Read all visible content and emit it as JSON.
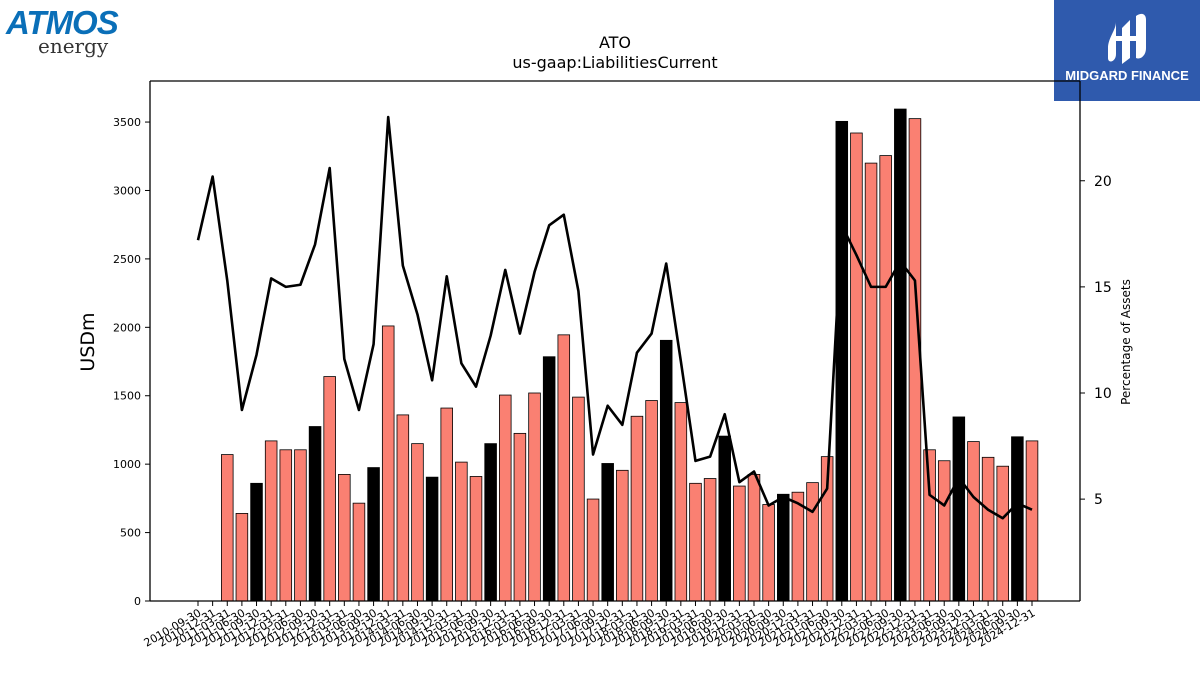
{
  "logos": {
    "left_line1": "ATMOS",
    "left_line2": "energy",
    "right_text": "MIDGARD FINANCE"
  },
  "colors": {
    "bar_regular": "#fa8072",
    "bar_fiscal_year_end": "#000000",
    "line": "#000000",
    "logo_right_bg": "#2f5aad",
    "logo_left": "#0a6fb8"
  },
  "chart_data": {
    "type": "bar",
    "title": "ATO",
    "subtitle": "us-gaap:LiabilitiesCurrent",
    "ylabel": "USDm",
    "y2label": "Percentage of Assets",
    "ylim": [
      0,
      3800
    ],
    "y2lim": [
      0.2,
      24.7
    ],
    "yticks": [
      0,
      500,
      1000,
      1500,
      2000,
      2500,
      3000,
      3500
    ],
    "y2ticks": [
      5,
      10,
      15,
      20
    ],
    "grid": false,
    "categories": [
      "2010-09-30",
      "2010-12-31",
      "2011-03-31",
      "2011-06-30",
      "2011-09-30",
      "2011-12-31",
      "2012-03-31",
      "2012-06-30",
      "2012-09-30",
      "2012-12-31",
      "2013-03-31",
      "2013-06-30",
      "2013-09-30",
      "2013-12-31",
      "2014-03-31",
      "2014-06-30",
      "2014-09-30",
      "2014-12-31",
      "2015-03-31",
      "2015-06-30",
      "2015-09-30",
      "2015-12-31",
      "2016-03-31",
      "2016-06-30",
      "2016-09-30",
      "2016-12-31",
      "2017-03-31",
      "2017-06-30",
      "2017-09-30",
      "2017-12-31",
      "2018-03-31",
      "2018-06-30",
      "2018-09-30",
      "2018-12-31",
      "2019-03-31",
      "2019-06-30",
      "2019-09-30",
      "2019-12-31",
      "2020-03-31",
      "2020-06-30",
      "2020-09-30",
      "2020-12-31",
      "2021-03-31",
      "2021-06-30",
      "2021-09-30",
      "2021-12-31",
      "2022-03-31",
      "2022-06-30",
      "2022-09-30",
      "2022-12-31",
      "2023-03-31",
      "2023-06-30",
      "2023-09-30",
      "2023-12-31",
      "2024-03-31",
      "2024-06-30",
      "2024-09-30",
      "2024-12-31"
    ],
    "series": [
      {
        "kind": "bar",
        "values": [
          null,
          null,
          1070,
          640,
          860,
          1170,
          1105,
          1105,
          1275,
          1640,
          925,
          715,
          975,
          2010,
          1360,
          1150,
          905,
          1410,
          1015,
          910,
          1150,
          1505,
          1225,
          1520,
          1785,
          1945,
          1490,
          745,
          1005,
          955,
          1350,
          1465,
          1905,
          1450,
          860,
          895,
          1205,
          840,
          925,
          705,
          780,
          795,
          865,
          1055,
          3505,
          3420,
          3200,
          3255,
          3595,
          3525,
          1105,
          1025,
          1345,
          1165,
          1050,
          985,
          1200,
          1170
        ],
        "fiscal_year_end": [
          true,
          false,
          false,
          false,
          true,
          false,
          false,
          false,
          true,
          false,
          false,
          false,
          true,
          false,
          false,
          false,
          true,
          false,
          false,
          false,
          true,
          false,
          false,
          false,
          true,
          false,
          false,
          false,
          true,
          false,
          false,
          false,
          true,
          false,
          false,
          false,
          true,
          false,
          false,
          false,
          true,
          false,
          false,
          false,
          true,
          false,
          false,
          false,
          true,
          false,
          false,
          false,
          true,
          false,
          false,
          false,
          true,
          false
        ]
      },
      {
        "kind": "line",
        "axis": "right",
        "values": [
          17.2,
          20.2,
          15.3,
          9.2,
          11.8,
          15.4,
          15.0,
          15.1,
          17.0,
          20.6,
          11.6,
          9.2,
          12.3,
          23.0,
          16.0,
          13.7,
          10.6,
          15.5,
          11.4,
          10.3,
          12.7,
          15.8,
          12.8,
          15.7,
          17.9,
          18.4,
          14.8,
          7.1,
          9.4,
          8.5,
          11.9,
          12.8,
          16.1,
          11.5,
          6.8,
          7.0,
          9.0,
          5.8,
          6.3,
          4.7,
          5.1,
          4.8,
          4.4,
          5.5,
          17.9,
          16.5,
          15.0,
          15.0,
          16.2,
          15.3,
          5.2,
          4.7,
          6.0,
          5.1,
          4.5,
          4.1,
          4.8,
          4.5
        ]
      }
    ]
  }
}
